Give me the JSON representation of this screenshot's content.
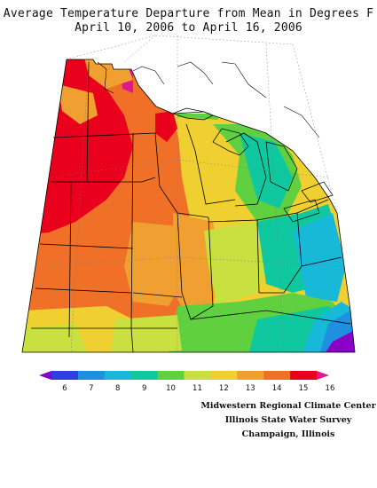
{
  "title": {
    "line1": "Average Temperature Departure from Mean in Degrees F",
    "line2": "April 10, 2006 to April 16, 2006"
  },
  "legend": {
    "labels": [
      "6",
      "7",
      "8",
      "9",
      "10",
      "11",
      "12",
      "13",
      "14",
      "15",
      "16"
    ],
    "colors": [
      "#8a00c8",
      "#2f3ee0",
      "#1f90e0",
      "#18b8d8",
      "#10c8a0",
      "#60d040",
      "#c8e040",
      "#f0d030",
      "#f0a030",
      "#f07028",
      "#e8001c",
      "#e0188c"
    ]
  },
  "credits": {
    "line1": "Midwestern Regional Climate Center",
    "line2": "Illinois State Water Survey",
    "line3": "Champaign, Illinois"
  },
  "map_colors": {
    "c16": "#e0188c",
    "c15": "#e8001c",
    "c14": "#f07028",
    "c13": "#f0a030",
    "c12": "#f0d030",
    "c11": "#c8e040",
    "c10": "#60d040",
    "c9": "#10c8a0",
    "c8": "#18b8d8",
    "c7": "#1f90e0",
    "c6": "#2f3ee0",
    "c5": "#8a00c8"
  }
}
